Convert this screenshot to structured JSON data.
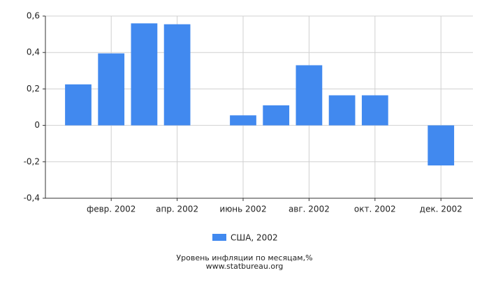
{
  "chart_data": {
    "type": "bar",
    "caption": "Уровень инфляции по месяцам,%",
    "source": "www.statbureau.org",
    "categories": [
      null,
      "февр. 2002",
      null,
      "апр. 2002",
      null,
      "июнь 2002",
      null,
      "авг. 2002",
      null,
      "окт. 2002",
      null,
      "дек. 2002"
    ],
    "series": [
      {
        "name": "США, 2002",
        "color": "#4189ef",
        "values": [
          0.225,
          0.395,
          0.56,
          0.555,
          0,
          0.055,
          0.11,
          0.33,
          0.165,
          0.165,
          0,
          -0.22
        ]
      }
    ],
    "ylim": [
      -0.4,
      0.6
    ],
    "yticks": [
      {
        "value": -0.4,
        "label": "-0,4"
      },
      {
        "value": -0.2,
        "label": "-0,2"
      },
      0,
      {
        "value": 0.2,
        "label": "0,2"
      },
      {
        "value": 0.4,
        "label": "0,4"
      },
      {
        "value": 0.6,
        "label": "0,6"
      }
    ],
    "grid": true
  }
}
